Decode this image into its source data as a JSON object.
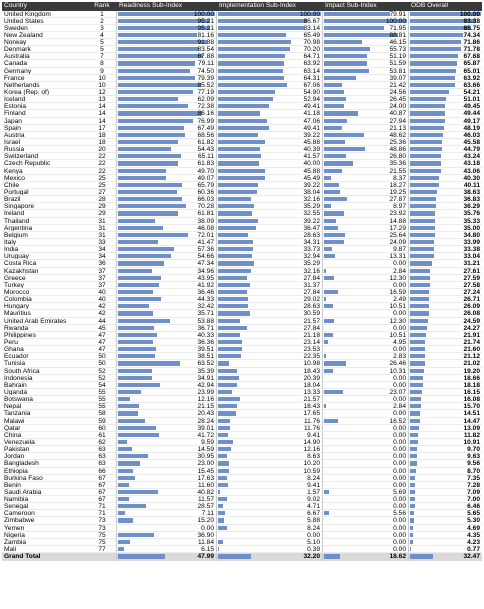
{
  "headers": {
    "country": "Country",
    "rank": "Rank",
    "readiness": "Readiness Sub-Index",
    "implementation": "Implementation Sub-Index",
    "impact": "Impact Sub-Index",
    "odb": "ODB Overall"
  },
  "bar_color": "#6f8fc8",
  "header_bg": "#3a3a3a",
  "chart_data": {
    "type": "table",
    "columns": [
      "Country",
      "Rank",
      "Readiness Sub-Index",
      "Implementation Sub-Index",
      "Impact Sub-Index",
      "ODB Overall"
    ],
    "rows": [
      [
        "United Kingdom",
        "1",
        "100.00",
        "100.00",
        "79.91",
        "100.00"
      ],
      [
        "United States",
        "2",
        "95.21",
        "86.67",
        "100.00",
        "93.38"
      ],
      [
        "Sweden",
        "3",
        "95.21",
        "83.14",
        "71.95",
        "85.75"
      ],
      [
        "New Zealand",
        "4",
        "81.16",
        "65.49",
        "88.81",
        "74.34"
      ],
      [
        "Norway",
        "5",
        "91.88",
        "70.98",
        "46.15",
        "71.86"
      ],
      [
        "Denmark",
        "5",
        "83.54",
        "70.20",
        "55.73",
        "71.78"
      ],
      [
        "Australia",
        "7",
        "87.88",
        "64.71",
        "51.19",
        "67.68"
      ],
      [
        "Canada",
        "8",
        "79.11",
        "63.92",
        "51.59",
        "65.87"
      ],
      [
        "Germany",
        "9",
        "74.50",
        "63.14",
        "53.81",
        "65.01"
      ],
      [
        "France",
        "10",
        "79.39",
        "64.31",
        "39.07",
        "63.92"
      ],
      [
        "Netherlands",
        "10",
        "85.52",
        "67.06",
        "21.42",
        "63.66"
      ],
      [
        "Korea (Rep. of)",
        "12",
        "77.19",
        "54.90",
        "24.56",
        "54.21"
      ],
      [
        "Iceland",
        "13",
        "62.09",
        "52.94",
        "26.45",
        "51.01"
      ],
      [
        "Estonia",
        "14",
        "72.38",
        "49.41",
        "24.00",
        "49.45"
      ],
      [
        "Finland",
        "14",
        "86.16",
        "41.18",
        "40.87",
        "49.44"
      ],
      [
        "Japan",
        "14",
        "76.99",
        "47.06",
        "27.94",
        "49.17"
      ],
      [
        "Spain",
        "17",
        "67.49",
        "49.41",
        "21.13",
        "48.19"
      ],
      [
        "Austria",
        "18",
        "68.56",
        "39.22",
        "48.62",
        "46.03"
      ],
      [
        "Israel",
        "18",
        "61.82",
        "45.88",
        "25.36",
        "45.58"
      ],
      [
        "Russia",
        "20",
        "54.43",
        "40.39",
        "48.86",
        "44.79"
      ],
      [
        "Switzerland",
        "22",
        "65.11",
        "41.57",
        "26.80",
        "43.24"
      ],
      [
        "Czech Republic",
        "22",
        "61.83",
        "40.00",
        "35.36",
        "43.18"
      ],
      [
        "Kenya",
        "22",
        "49.70",
        "45.88",
        "21.55",
        "43.06"
      ],
      [
        "Mexico",
        "25",
        "49.07",
        "45.49",
        "8.37",
        "40.30"
      ],
      [
        "Chile",
        "25",
        "65.79",
        "39.22",
        "18.27",
        "40.11"
      ],
      [
        "Portugal",
        "27",
        "60.36",
        "38.04",
        "19.25",
        "38.63"
      ],
      [
        "Brazil",
        "28",
        "66.03",
        "32.16",
        "27.87",
        "36.83"
      ],
      [
        "Singapore",
        "29",
        "70.28",
        "35.29",
        "8.97",
        "36.29"
      ],
      [
        "Ireland",
        "29",
        "61.81",
        "32.55",
        "23.92",
        "35.76"
      ],
      [
        "Thailand",
        "31",
        "38.09",
        "39.22",
        "14.88",
        "35.33"
      ],
      [
        "Argentina",
        "31",
        "46.08",
        "36.47",
        "17.29",
        "35.00"
      ],
      [
        "Belgium",
        "31",
        "72.01",
        "28.63",
        "25.64",
        "34.80"
      ],
      [
        "Italy",
        "33",
        "41.47",
        "34.31",
        "24.09",
        "33.99"
      ],
      [
        "India",
        "34",
        "57.36",
        "33.73",
        "9.87",
        "33.38"
      ],
      [
        "Uruguay",
        "34",
        "54.66",
        "32.94",
        "13.31",
        "33.04"
      ],
      [
        "Costa Rica",
        "36",
        "47.34",
        "35.29",
        "0.00",
        "31.21"
      ],
      [
        "Kazakhstan",
        "37",
        "34.96",
        "32.16",
        "2.84",
        "27.61"
      ],
      [
        "Greece",
        "37",
        "43.95",
        "27.84",
        "12.30",
        "27.59"
      ],
      [
        "Turkey",
        "37",
        "41.92",
        "31.37",
        "0.00",
        "27.58"
      ],
      [
        "Morocco",
        "40",
        "36.46",
        "27.84",
        "16.59",
        "27.24"
      ],
      [
        "Colombia",
        "40",
        "44.33",
        "29.02",
        "2.49",
        "26.71"
      ],
      [
        "Hungary",
        "42",
        "32.42",
        "28.63",
        "10.51",
        "26.09"
      ],
      [
        "Mauritius",
        "42",
        "35.71",
        "30.59",
        "0.00",
        "26.08"
      ],
      [
        "United Arab Emirates",
        "44",
        "53.88",
        "21.57",
        "12.30",
        "24.59"
      ],
      [
        "Rwanda",
        "45",
        "36.71",
        "27.84",
        "0.00",
        "24.27"
      ],
      [
        "Philippines",
        "47",
        "40.33",
        "21.18",
        "10.51",
        "21.91"
      ],
      [
        "Peru",
        "47",
        "36.36",
        "23.14",
        "4.95",
        "21.74"
      ],
      [
        "Ghana",
        "47",
        "39.51",
        "23.53",
        "0.00",
        "21.60"
      ],
      [
        "Ecuador",
        "50",
        "38.51",
        "22.35",
        "2.83",
        "21.12"
      ],
      [
        "Tunisia",
        "50",
        "63.52",
        "10.98",
        "26.46",
        "21.02"
      ],
      [
        "South Africa",
        "52",
        "35.39",
        "18.43",
        "10.31",
        "19.20"
      ],
      [
        "Indonesia",
        "52",
        "34.91",
        "20.39",
        "0.00",
        "18.66"
      ],
      [
        "Bahrain",
        "54",
        "42.94",
        "18.04",
        "0.00",
        "18.18"
      ],
      [
        "Uganda",
        "55",
        "23.99",
        "13.33",
        "23.07",
        "16.15"
      ],
      [
        "Botswana",
        "55",
        "12.16",
        "21.57",
        "0.00",
        "16.08"
      ],
      [
        "Nepal",
        "55",
        "21.15",
        "18.43",
        "2.84",
        "15.70"
      ],
      [
        "Tanzania",
        "58",
        "20.43",
        "17.65",
        "0.00",
        "14.51"
      ],
      [
        "Malawi",
        "59",
        "28.24",
        "11.76",
        "16.52",
        "14.47"
      ],
      [
        "Qatar",
        "60",
        "39.01",
        "11.76",
        "0.00",
        "13.09"
      ],
      [
        "China",
        "61",
        "41.72",
        "9.41",
        "0.00",
        "11.82"
      ],
      [
        "Venezuela",
        "62",
        "9.59",
        "14.90",
        "0.00",
        "10.91"
      ],
      [
        "Pakistan",
        "63",
        "14.59",
        "12.16",
        "0.00",
        "9.70"
      ],
      [
        "Jordan",
        "63",
        "30.95",
        "8.63",
        "0.00",
        "9.63"
      ],
      [
        "Bangladesh",
        "63",
        "23.00",
        "10.20",
        "0.00",
        "9.56"
      ],
      [
        "Ethiopia",
        "66",
        "15.45",
        "10.59",
        "0.00",
        "8.70"
      ],
      [
        "Burkina Faso",
        "67",
        "17.63",
        "8.24",
        "0.00",
        "7.35"
      ],
      [
        "Benin",
        "67",
        "11.60",
        "9.41",
        "0.00",
        "7.28"
      ],
      [
        "Saudi Arabia",
        "67",
        "40.82",
        "1.57",
        "5.69",
        "7.09"
      ],
      [
        "Namibia",
        "67",
        "11.57",
        "9.02",
        "0.00",
        "7.00"
      ],
      [
        "Senegal",
        "71",
        "28.57",
        "4.71",
        "0.00",
        "6.46"
      ],
      [
        "Cameroon",
        "71",
        "7.11",
        "6.67",
        "5.56",
        "5.65"
      ],
      [
        "Zimbabwe",
        "73",
        "15.20",
        "5.88",
        "0.00",
        "5.30"
      ],
      [
        "Yemen",
        "73",
        "0.00",
        "8.24",
        "0.00",
        "4.69"
      ],
      [
        "Nigeria",
        "75",
        "36.90",
        "0.00",
        "0.00",
        "4.35"
      ],
      [
        "Zambia",
        "75",
        "11.84",
        "5.10",
        "0.00",
        "4.23"
      ],
      [
        "Mali",
        "77",
        "6.15",
        "0.39",
        "0.00",
        "0.77"
      ]
    ],
    "total": [
      "Grand Total",
      "",
      "47.99",
      "32.20",
      "18.62",
      "32.47"
    ],
    "value_range": [
      0,
      100
    ]
  }
}
